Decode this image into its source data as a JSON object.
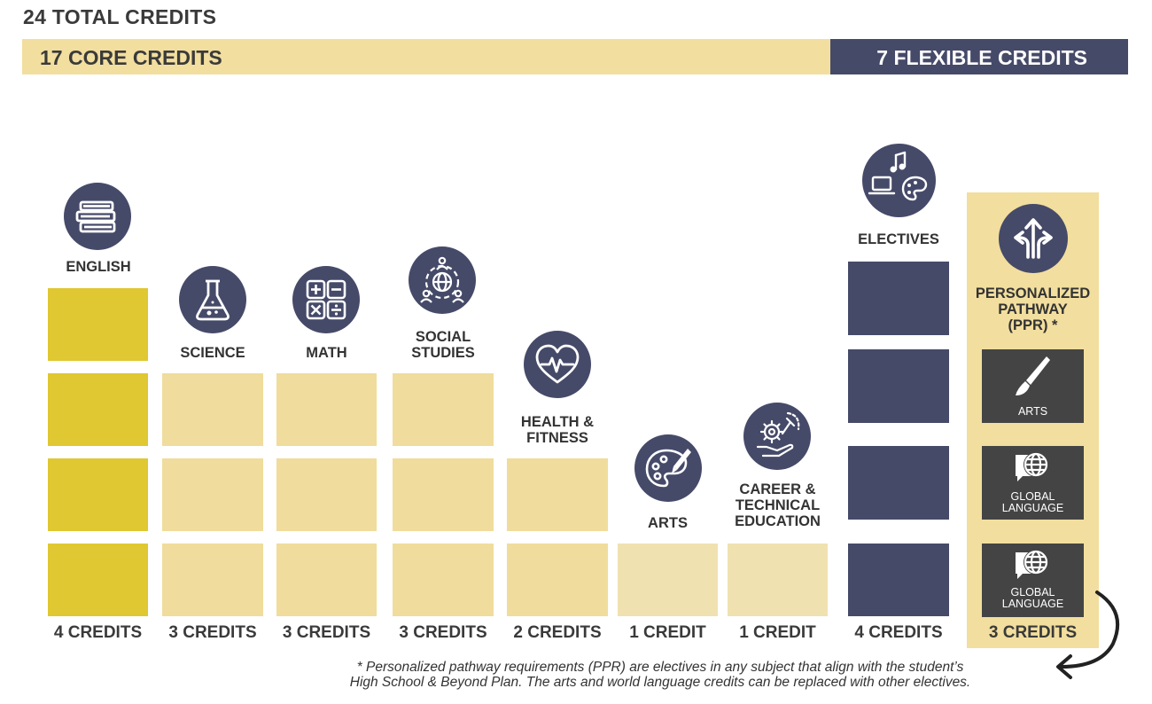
{
  "header": {
    "total": "24 TOTAL CREDITS",
    "core": "17 CORE CREDITS",
    "flexible": "7 FLEXIBLE CREDITS"
  },
  "colors": {
    "core_banner": "#f2de9e",
    "flexible_banner": "#464a69",
    "english_block": "#dfc831",
    "core_block": "#f0dc9c",
    "single_credit_block": "#f0e1b0",
    "electives_block": "#464a69",
    "ppr_panel": "#f2de9e",
    "ppr_box": "#444444",
    "icon_circle": "#464a69"
  },
  "subjects": [
    {
      "label": "ENGLISH",
      "credits": "4 CREDITS",
      "count": 4,
      "icon": "books-icon"
    },
    {
      "label": "SCIENCE",
      "credits": "3 CREDITS",
      "count": 3,
      "icon": "flask-icon"
    },
    {
      "label": "MATH",
      "credits": "3 CREDITS",
      "count": 3,
      "icon": "math-symbols-icon"
    },
    {
      "label_lines": [
        "SOCIAL",
        "STUDIES"
      ],
      "credits": "3 CREDITS",
      "count": 3,
      "icon": "globe-people-icon"
    },
    {
      "label_lines": [
        "HEALTH &",
        "FITNESS"
      ],
      "credits": "2 CREDITS",
      "count": 2,
      "icon": "heart-pulse-icon"
    },
    {
      "label": "ARTS",
      "credits": "1 CREDIT",
      "count": 1,
      "icon": "palette-icon"
    },
    {
      "label_lines": [
        "CAREER &",
        "TECHNICAL",
        "EDUCATION"
      ],
      "credits": "1 CREDIT",
      "count": 1,
      "icon": "gear-hand-icon"
    },
    {
      "label": "ELECTIVES",
      "credits": "4 CREDITS",
      "count": 4,
      "icon": "music-laptop-palette-icon"
    }
  ],
  "ppr": {
    "label_lines": [
      "PERSONALIZED",
      "PATHWAY",
      "(PPR) *"
    ],
    "credits": "3 CREDITS",
    "count": 3,
    "icon": "directions-arrows-icon",
    "boxes": [
      {
        "label": "ARTS",
        "icon": "paintbrush-icon"
      },
      {
        "label_lines": [
          "GLOBAL",
          "LANGUAGE"
        ],
        "icon": "speech-globe-icon"
      },
      {
        "label_lines": [
          "GLOBAL",
          "LANGUAGE"
        ],
        "icon": "speech-globe-icon"
      }
    ]
  },
  "footnote": {
    "line1": "* Personalized pathway requirements (PPR) are electives in any subject that align with the student’s",
    "line2": "High School & Beyond Plan. The arts and world language credits can be replaced with other electives."
  }
}
